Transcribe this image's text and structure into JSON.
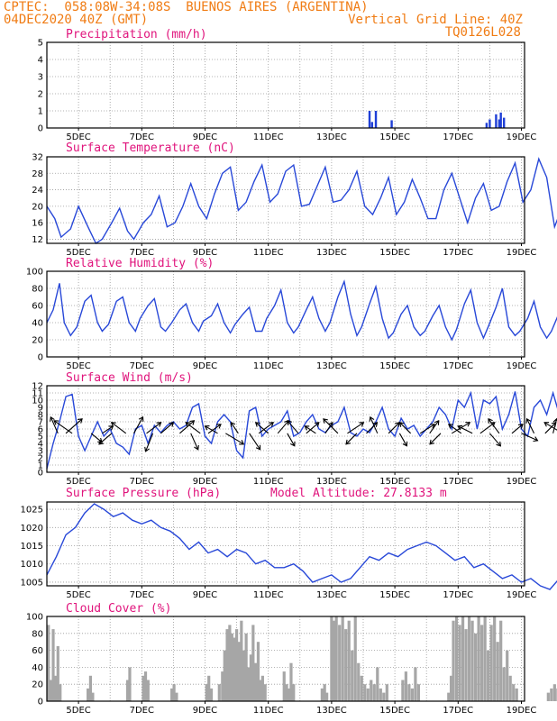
{
  "header": {
    "line1": "CPTEC:  058:08W-34:08S  BUENOS AIRES (ARGENTINA)",
    "line2_left": "04DEC2020 40Z (GMT)",
    "line2_right": "Vertical Grid Line: 40Z",
    "line3_right": "TQ0126L028"
  },
  "x_labels": [
    "5DEC",
    "7DEC",
    "9DEC",
    "11DEC",
    "13DEC",
    "15DEC",
    "17DEC",
    "19DEC"
  ],
  "chart_data": [
    {
      "type": "bar",
      "title": "Precipitation (mm/h)",
      "ylim": [
        0,
        5
      ],
      "yticks": [
        "0",
        "1",
        "2",
        "3",
        "4",
        "5"
      ],
      "color": "#1f3fd6",
      "x_days_from_4dec": [
        10.2,
        10.28,
        10.4,
        10.9,
        13.9,
        14.0,
        14.2,
        14.3,
        14.35,
        14.45
      ],
      "values": [
        1.0,
        0.35,
        1.0,
        0.45,
        0.3,
        0.5,
        0.8,
        0.5,
        0.9,
        0.6
      ]
    },
    {
      "type": "line",
      "title": "Surface Temperature (nC)",
      "ylim": [
        11,
        32
      ],
      "yticks": [
        "12",
        "16",
        "20",
        "24",
        "28",
        "32"
      ],
      "color": "#2848d8",
      "x_days_from_4dec": [
        0,
        0.25,
        0.45,
        0.75,
        1.0,
        1.3,
        1.55,
        1.75,
        2.05,
        2.3,
        2.55,
        2.75,
        3.05,
        3.3,
        3.55,
        3.8,
        4.05,
        4.3,
        4.55,
        4.8,
        5.05,
        5.3,
        5.55,
        5.8,
        6.05,
        6.3,
        6.55,
        6.8,
        7.05,
        7.3,
        7.55,
        7.8,
        8.05,
        8.3,
        8.55,
        8.8,
        9.05,
        9.3,
        9.55,
        9.8,
        10.05,
        10.3,
        10.55,
        10.8,
        11.05,
        11.3,
        11.55,
        11.8,
        12.05,
        12.3,
        12.55,
        12.8,
        13.05,
        13.3,
        13.55,
        13.8,
        14.05,
        14.3,
        14.55,
        14.8,
        15.05,
        15.3,
        15.55,
        15.8,
        16.05,
        16.3,
        16.55,
        16.8,
        17.05,
        17.3,
        17.55,
        17.8,
        18.05,
        18.3,
        18.55,
        18.8,
        19.0
      ],
      "values": [
        20,
        17,
        12.5,
        14.5,
        20,
        15,
        11,
        12,
        16,
        19.5,
        14,
        12,
        16,
        18,
        22.5,
        15,
        16,
        20,
        25.5,
        20,
        17,
        23,
        28,
        29.5,
        19,
        21,
        26,
        30,
        21,
        23,
        28.5,
        30,
        20,
        20.5,
        25,
        29.5,
        21,
        21.5,
        24,
        28.5,
        20,
        18,
        22,
        27,
        18,
        21,
        26.5,
        22,
        17,
        17,
        24,
        28,
        22,
        16,
        22,
        25.5,
        19,
        20,
        26,
        30.5,
        21,
        24,
        31.5,
        27,
        15,
        20,
        27,
        29.5,
        17,
        15,
        23,
        27,
        18,
        14,
        21,
        29,
        28.5
      ]
    },
    {
      "type": "line",
      "title": "Relative Humidity (%)",
      "ylim": [
        0,
        100
      ],
      "yticks": [
        "0",
        "20",
        "40",
        "60",
        "80",
        "100"
      ],
      "color": "#2848d8",
      "x_days_from_4dec": [
        0,
        0.2,
        0.4,
        0.55,
        0.75,
        0.95,
        1.2,
        1.4,
        1.6,
        1.75,
        1.95,
        2.2,
        2.4,
        2.6,
        2.8,
        2.95,
        3.2,
        3.4,
        3.6,
        3.75,
        3.95,
        4.2,
        4.4,
        4.6,
        4.8,
        4.95,
        5.2,
        5.4,
        5.6,
        5.8,
        5.95,
        6.2,
        6.4,
        6.6,
        6.8,
        6.95,
        7.2,
        7.4,
        7.6,
        7.8,
        7.95,
        8.2,
        8.4,
        8.6,
        8.8,
        8.95,
        9.2,
        9.4,
        9.6,
        9.8,
        9.95,
        10.2,
        10.4,
        10.6,
        10.8,
        10.95,
        11.2,
        11.4,
        11.6,
        11.8,
        11.95,
        12.2,
        12.4,
        12.6,
        12.8,
        12.95,
        13.2,
        13.4,
        13.6,
        13.8,
        13.95,
        14.2,
        14.4,
        14.6,
        14.8,
        14.95,
        15.2,
        15.4,
        15.6,
        15.8,
        15.95,
        16.2,
        16.4,
        16.6,
        16.8,
        16.95,
        17.2,
        17.4,
        17.6,
        17.8,
        17.95,
        18.2,
        18.4,
        18.6,
        18.8,
        19.0
      ],
      "values": [
        40,
        55,
        86,
        40,
        25,
        35,
        65,
        72,
        40,
        30,
        38,
        65,
        70,
        40,
        30,
        45,
        60,
        68,
        35,
        30,
        40,
        55,
        62,
        40,
        30,
        42,
        48,
        62,
        40,
        28,
        38,
        50,
        58,
        30,
        30,
        45,
        60,
        78,
        40,
        28,
        35,
        55,
        70,
        45,
        30,
        40,
        70,
        88,
        50,
        25,
        35,
        62,
        82,
        45,
        22,
        28,
        50,
        60,
        35,
        25,
        30,
        48,
        60,
        35,
        20,
        32,
        62,
        78,
        40,
        22,
        35,
        58,
        80,
        35,
        25,
        30,
        45,
        65,
        35,
        22,
        30,
        52,
        65,
        30,
        18,
        25,
        58,
        75,
        35,
        15,
        22,
        45,
        65,
        30,
        20,
        25
      ]
    },
    {
      "type": "line",
      "title": "Surface Wind (m/s)",
      "ylim": [
        0,
        12
      ],
      "yticks": [
        "0",
        "1",
        "2",
        "3",
        "4",
        "5",
        "6",
        "7",
        "8",
        "9",
        "10",
        "11",
        "12"
      ],
      "color": "#2848d8",
      "x_days_from_4dec": [
        0,
        0.2,
        0.4,
        0.6,
        0.8,
        1.0,
        1.2,
        1.4,
        1.6,
        1.8,
        2.0,
        2.2,
        2.4,
        2.6,
        2.8,
        3.0,
        3.2,
        3.4,
        3.6,
        3.8,
        4.0,
        4.2,
        4.4,
        4.6,
        4.8,
        5.0,
        5.2,
        5.4,
        5.6,
        5.8,
        6.0,
        6.2,
        6.4,
        6.6,
        6.8,
        7.0,
        7.2,
        7.4,
        7.6,
        7.8,
        8.0,
        8.2,
        8.4,
        8.6,
        8.8,
        9.0,
        9.2,
        9.4,
        9.6,
        9.8,
        10.0,
        10.2,
        10.4,
        10.6,
        10.8,
        11.0,
        11.2,
        11.4,
        11.6,
        11.8,
        12.0,
        12.2,
        12.4,
        12.6,
        12.8,
        13.0,
        13.2,
        13.4,
        13.6,
        13.8,
        14.0,
        14.2,
        14.4,
        14.6,
        14.8,
        15.0,
        15.2,
        15.4,
        15.6,
        15.8,
        16.0,
        16.2,
        16.4,
        16.6,
        16.8,
        17.0,
        17.2,
        17.4,
        17.6,
        17.8,
        18.0,
        18.2,
        18.4,
        18.6,
        18.8,
        19.0
      ],
      "values": [
        0.5,
        4,
        7,
        10.5,
        10.8,
        5,
        3,
        5,
        7,
        5,
        6,
        4,
        3.5,
        2.5,
        6,
        6.5,
        4,
        6.5,
        5.5,
        6.5,
        7,
        6,
        6.5,
        9,
        9.5,
        5,
        4,
        7,
        8,
        7,
        3,
        2,
        8.5,
        9,
        5,
        6,
        6.5,
        7,
        8.5,
        5,
        5.5,
        7,
        8,
        6,
        5.5,
        6.5,
        7,
        9,
        5.5,
        5,
        6,
        5.5,
        7,
        9,
        6,
        5,
        7.5,
        6,
        6.5,
        5,
        6,
        7,
        9,
        8,
        6,
        10,
        9,
        11,
        6,
        10,
        9.5,
        10.5,
        6,
        8,
        11.2,
        6,
        5,
        9,
        10,
        8,
        11,
        8,
        7,
        10.5,
        10,
        11.5,
        9,
        10,
        8.5,
        7,
        6,
        8,
        9,
        6,
        4,
        6.5
      ]
    },
    {
      "type": "line",
      "title": "Surface Pressure (hPa)",
      "subtitle": "Model Altitude: 27.8133 m",
      "ylim": [
        1004,
        1027
      ],
      "yticks": [
        "1005",
        "1010",
        "1015",
        "1020",
        "1025"
      ],
      "color": "#2848d8",
      "x_days_from_4dec": [
        0,
        0.3,
        0.6,
        0.9,
        1.2,
        1.5,
        1.8,
        2.1,
        2.4,
        2.7,
        3.0,
        3.3,
        3.6,
        3.9,
        4.2,
        4.5,
        4.8,
        5.1,
        5.4,
        5.7,
        6.0,
        6.3,
        6.6,
        6.9,
        7.2,
        7.5,
        7.8,
        8.1,
        8.4,
        8.7,
        9.0,
        9.3,
        9.6,
        9.9,
        10.2,
        10.5,
        10.8,
        11.1,
        11.4,
        11.7,
        12.0,
        12.3,
        12.6,
        12.9,
        13.2,
        13.5,
        13.8,
        14.1,
        14.4,
        14.7,
        15.0,
        15.3,
        15.6,
        15.9,
        16.2,
        16.5,
        16.8,
        17.1,
        17.4,
        17.7,
        18.0,
        18.3,
        18.6,
        18.9,
        19.0
      ],
      "values": [
        1007,
        1012,
        1018,
        1020,
        1024,
        1026.5,
        1025,
        1023,
        1024,
        1022,
        1021,
        1022,
        1020,
        1019,
        1017,
        1014,
        1016,
        1013,
        1014,
        1012,
        1014,
        1013,
        1010,
        1011,
        1009,
        1009,
        1010,
        1008,
        1005,
        1006,
        1007,
        1005,
        1006,
        1009,
        1012,
        1011,
        1013,
        1012,
        1014,
        1015,
        1016,
        1015,
        1013,
        1011,
        1012,
        1009,
        1010,
        1008,
        1006,
        1007,
        1005,
        1006,
        1004,
        1003,
        1006,
        1010,
        1012,
        1015,
        1016,
        1017.5,
        1016,
        1016,
        1013,
        1010,
        1009
      ]
    },
    {
      "type": "bar",
      "title": "Cloud Cover (%)",
      "ylim": [
        0,
        100
      ],
      "yticks": [
        "0",
        "20",
        "40",
        "60",
        "80",
        "100"
      ],
      "color": "#a6a6a6",
      "x_days_from_4dec": [
        0.05,
        0.12,
        0.2,
        0.28,
        0.35,
        0.42,
        1.3,
        1.38,
        1.45,
        2.55,
        2.62,
        3.05,
        3.12,
        3.2,
        3.95,
        4.02,
        4.1,
        5.05,
        5.12,
        5.2,
        5.45,
        5.55,
        5.62,
        5.7,
        5.78,
        5.85,
        5.92,
        6.0,
        6.08,
        6.15,
        6.22,
        6.3,
        6.38,
        6.45,
        6.52,
        6.6,
        6.68,
        6.75,
        6.82,
        6.9,
        7.5,
        7.58,
        7.65,
        7.72,
        7.8,
        8.7,
        8.78,
        8.85,
        9.0,
        9.08,
        9.15,
        9.25,
        9.35,
        9.45,
        9.55,
        9.65,
        9.75,
        9.85,
        9.95,
        10.05,
        10.15,
        10.25,
        10.35,
        10.45,
        10.55,
        10.65,
        10.75,
        11.25,
        11.35,
        11.45,
        11.55,
        11.65,
        11.75,
        12.7,
        12.78,
        12.85,
        12.95,
        13.05,
        13.15,
        13.25,
        13.35,
        13.45,
        13.55,
        13.65,
        13.75,
        13.85,
        13.95,
        14.05,
        14.15,
        14.25,
        14.35,
        14.45,
        14.55,
        14.65,
        14.75,
        14.85,
        15.85,
        15.95,
        16.05,
        16.15,
        17.7,
        17.8,
        17.9,
        18.0,
        18.1,
        18.2,
        18.3,
        18.4,
        18.5,
        18.6,
        18.7,
        18.8,
        18.9
      ],
      "values": [
        90,
        25,
        85,
        30,
        65,
        20,
        15,
        30,
        10,
        25,
        40,
        30,
        35,
        25,
        15,
        20,
        10,
        20,
        30,
        15,
        20,
        35,
        60,
        85,
        90,
        80,
        75,
        85,
        70,
        95,
        60,
        80,
        40,
        55,
        90,
        45,
        70,
        25,
        30,
        20,
        35,
        20,
        15,
        45,
        20,
        15,
        20,
        10,
        100,
        95,
        100,
        90,
        100,
        85,
        95,
        60,
        100,
        45,
        30,
        20,
        15,
        25,
        20,
        40,
        15,
        10,
        20,
        25,
        35,
        20,
        15,
        40,
        20,
        10,
        30,
        95,
        100,
        90,
        100,
        85,
        100,
        95,
        80,
        100,
        90,
        100,
        60,
        90,
        100,
        70,
        95,
        40,
        60,
        30,
        20,
        15,
        10,
        15,
        20,
        15,
        30,
        20,
        25,
        45,
        60,
        40,
        70,
        55,
        90,
        40,
        75,
        20,
        15
      ]
    }
  ],
  "wind_arrows": {
    "x_days_from_4dec": [
      0.35,
      0.6,
      0.8,
      1.4,
      1.75,
      2.05,
      2.5,
      2.75,
      3.15,
      3.35,
      3.6,
      4.2,
      4.55,
      4.85,
      5.1,
      5.4,
      5.65,
      6.05,
      6.4,
      6.7,
      7.0,
      7.3,
      7.6,
      7.95,
      8.2,
      8.5,
      8.8,
      9.2,
      9.5,
      9.8,
      10.1,
      10.45,
      10.8,
      11.15,
      11.5,
      11.8,
      12.1,
      12.45,
      12.8,
      13.1,
      13.45,
      13.7,
      14.0,
      14.3,
      14.7,
      15.0,
      15.4,
      15.75,
      16.0,
      16.3,
      16.55,
      16.85,
      17.2,
      17.55,
      17.9,
      18.2,
      18.5
    ],
    "u": [
      -0.2,
      0.45,
      -0.5,
      0.3,
      0.3,
      -0.35,
      -0.4,
      0.25,
      0.4,
      -0.2,
      0.35,
      0.4,
      0.2,
      -0.4,
      0.35,
      -0.35,
      0.5,
      -0.2,
      0.3,
      0.4,
      -0.35,
      0.3,
      0.2,
      -0.3,
      0.35,
      -0.3,
      0.2,
      -0.4,
      0.45,
      -0.3,
      0.3,
      -0.2,
      0.3,
      0.2,
      -0.3,
      0.4,
      0.25,
      -0.3,
      0.5,
      -0.35,
      -0.4,
      0.4,
      0.3,
      -0.3,
      0.3,
      0.45,
      -0.2,
      0.3,
      0.1,
      -0.5,
      -0.3,
      0.35,
      0.45,
      0.5,
      -0.3,
      0.3,
      -0.2
    ],
    "v": [
      0.45,
      0.4,
      0.35,
      -0.25,
      0.2,
      -0.3,
      0.3,
      0.45,
      0.3,
      -0.5,
      0.3,
      0.35,
      -0.45,
      0.3,
      0.25,
      0.2,
      -0.3,
      0.3,
      -0.45,
      0.3,
      0.3,
      0.35,
      -0.35,
      0.35,
      0.3,
      0.2,
      0.3,
      0.4,
      0.3,
      -0.3,
      0.3,
      0.45,
      0.3,
      -0.35,
      0.3,
      0.25,
      0.35,
      -0.3,
      0.3,
      0.25,
      0.2,
      0.3,
      -0.35,
      0.4,
      0.25,
      -0.2,
      0.4,
      0.3,
      0.4,
      0.3,
      0.35,
      -0.25,
      0.2,
      0.2,
      -0.3,
      0.35,
      0.3
    ]
  }
}
